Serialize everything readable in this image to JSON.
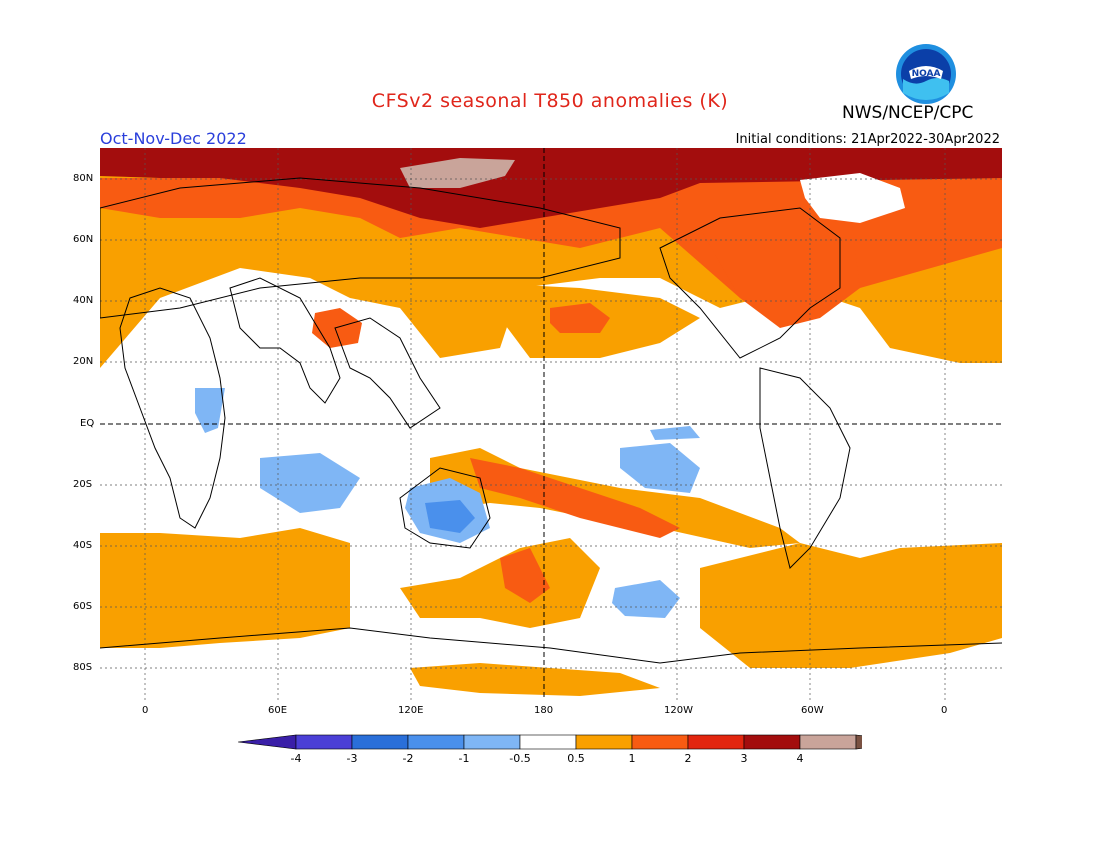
{
  "header": {
    "title": "CFSv2 seasonal T850 anomalies (K)",
    "agency": "NWS/NCEP/CPC",
    "season": "Oct-Nov-Dec 2022",
    "initial_conditions": "Initial conditions: 21Apr2022-30Apr2022",
    "logo_text": "NOAA"
  },
  "axes": {
    "lat_labels": [
      "80N",
      "60N",
      "40N",
      "20N",
      "EQ",
      "20S",
      "40S",
      "60S",
      "80S"
    ],
    "lon_labels": [
      "0",
      "60E",
      "120E",
      "180",
      "120W",
      "60W",
      "0"
    ]
  },
  "colorbar": {
    "labels": [
      "-4",
      "-3",
      "-2",
      "-1",
      "-0.5",
      "0.5",
      "1",
      "2",
      "3",
      "4"
    ],
    "colors": [
      "#3a1fa8",
      "#4b3fd6",
      "#2a6fd9",
      "#4a90ec",
      "#7fb6f5",
      "#ffffff",
      "#f9a000",
      "#f85b12",
      "#e2260f",
      "#a30d0d",
      "#c9a49a",
      "#7a5242"
    ]
  },
  "palette": {
    "land_outline": "#000000",
    "ocean_bg": "#ffffff"
  }
}
